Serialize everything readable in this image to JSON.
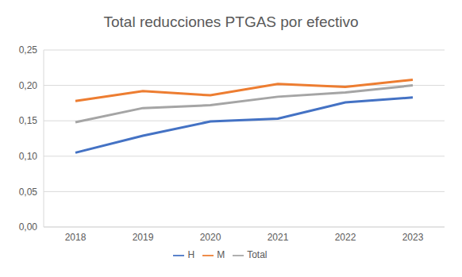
{
  "chart_data": {
    "type": "line",
    "title": "Total reducciones PTGAS por efectivo",
    "categories": [
      "2018",
      "2019",
      "2020",
      "2021",
      "2022",
      "2023"
    ],
    "series": [
      {
        "name": "H",
        "color": "#4472c4",
        "values": [
          0.105,
          0.129,
          0.149,
          0.153,
          0.176,
          0.183
        ]
      },
      {
        "name": "M",
        "color": "#ed7d31",
        "values": [
          0.178,
          0.192,
          0.186,
          0.202,
          0.198,
          0.208
        ]
      },
      {
        "name": "Total",
        "color": "#a5a5a5",
        "values": [
          0.148,
          0.168,
          0.172,
          0.184,
          0.19,
          0.2
        ]
      }
    ],
    "ylim": [
      0,
      0.25
    ],
    "yticks": [
      {
        "value": 0,
        "label": "0,00"
      },
      {
        "value": 0.05,
        "label": "0,05"
      },
      {
        "value": 0.1,
        "label": "0,10"
      },
      {
        "value": 0.15,
        "label": "0,15"
      },
      {
        "value": 0.2,
        "label": "0,20"
      },
      {
        "value": 0.25,
        "label": "0,25"
      }
    ],
    "grid": true,
    "legend": "bottom"
  }
}
